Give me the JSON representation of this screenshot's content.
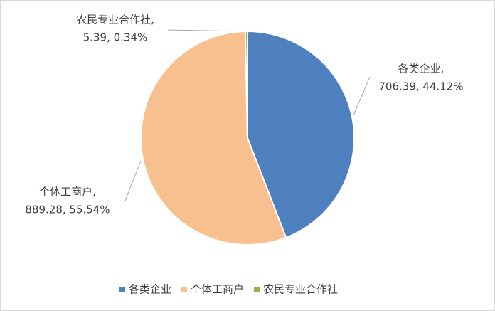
{
  "chart_data": {
    "type": "pie",
    "categories": [
      "各类企业",
      "个体工商户",
      "农民专业合作社"
    ],
    "values": [
      706.39,
      889.28,
      5.39
    ],
    "value_labels": [
      [
        "各类企业,",
        "706.39, 44.12%"
      ],
      [
        "个体工商户,",
        "889.28, 55.54%"
      ],
      [
        "农民专业合作社,",
        "5.39, 0.34%"
      ]
    ],
    "colors": [
      "#4e7fbf",
      "#f8c08f",
      "#8fb54a"
    ],
    "legend": "bottom"
  }
}
